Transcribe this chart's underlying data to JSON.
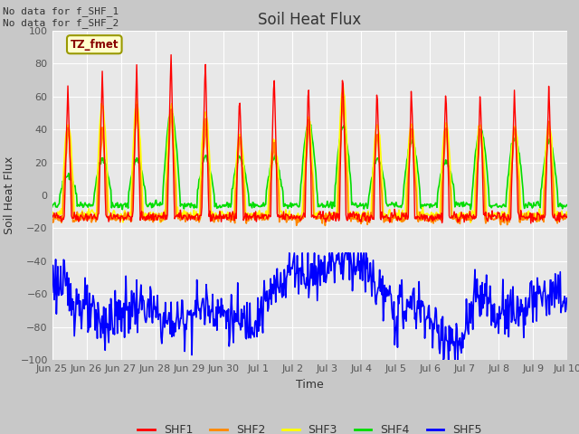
{
  "title": "Soil Heat Flux",
  "ylabel": "Soil Heat Flux",
  "xlabel": "Time",
  "top_text": "No data for f_SHF_1\nNo data for f_SHF_2",
  "legend_label": "TZ_fmet",
  "ylim": [
    -100,
    100
  ],
  "yticks": [
    -100,
    -80,
    -60,
    -40,
    -20,
    0,
    20,
    40,
    60,
    80,
    100
  ],
  "bg_color": "#c8c8c8",
  "plot_bg_color": "#e8e8e8",
  "colors": {
    "SHF1": "#ff0000",
    "SHF2": "#ff8800",
    "SHF3": "#ffff00",
    "SHF4": "#00dd00",
    "SHF5": "#0000ff"
  },
  "xtick_labels": [
    "Jun 25",
    "Jun 26",
    "Jun 27",
    "Jun 28",
    "Jun 29",
    "Jun 30",
    "Jul 1",
    "Jul 2",
    "Jul 3",
    "Jul 4",
    "Jul 5",
    "Jul 6",
    "Jul 7",
    "Jul 8",
    "Jul 9",
    "Jul 10"
  ],
  "n_days": 15
}
